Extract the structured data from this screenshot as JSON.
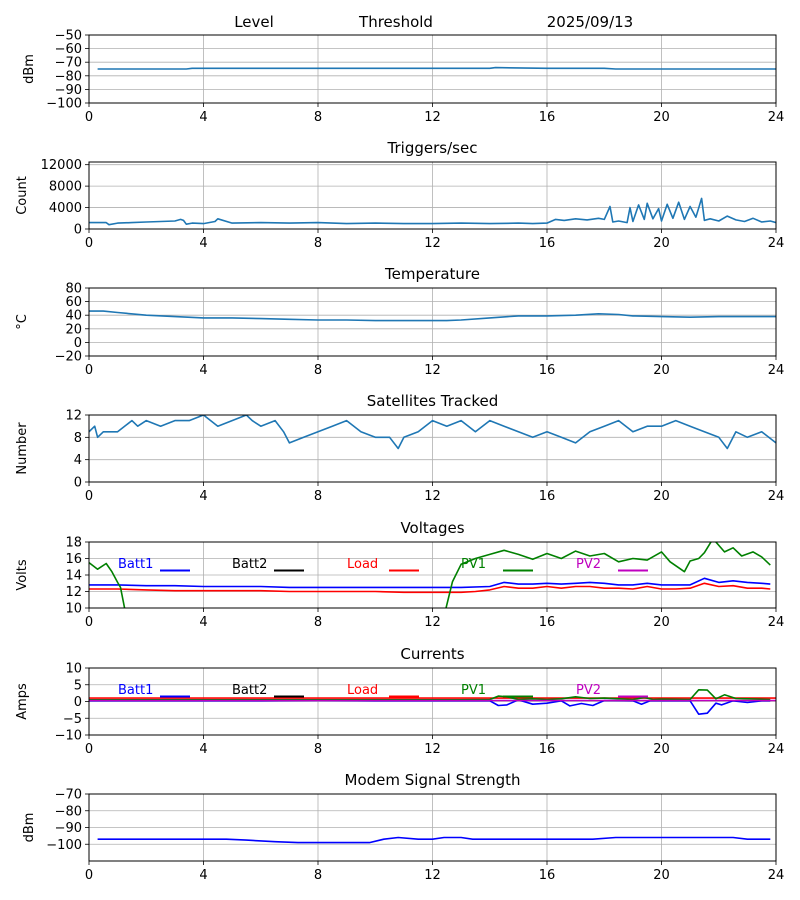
{
  "header": {
    "level_label": "Level",
    "threshold_label": "Threshold",
    "date": "2025/09/13"
  },
  "colors": {
    "primary_series": "#1f77b4",
    "grid": "#b0b0b0",
    "batt1": "#0000ff",
    "batt2": "#000000",
    "load": "#ff0000",
    "pv1": "#008000",
    "pv2": "#bf00bf"
  },
  "chart_data": [
    {
      "id": "level",
      "type": "line",
      "title": "",
      "xlabel": "",
      "ylabel": "dBm",
      "xlim": [
        0,
        24
      ],
      "ylim": [
        -100,
        -50
      ],
      "xticks": [
        0,
        4,
        8,
        12,
        16,
        20,
        24
      ],
      "yticks": [
        -100,
        -90,
        -80,
        -70,
        -60,
        -50
      ],
      "grid": true,
      "series": [
        {
          "color": "#1f77b4",
          "x": [
            0.3,
            2,
            3.4,
            3.6,
            6,
            8,
            10,
            12,
            14,
            14.2,
            16,
            18,
            18.4,
            20,
            21.6,
            24
          ],
          "y": [
            -75,
            -75,
            -75,
            -74.5,
            -74.5,
            -74.5,
            -74.5,
            -74.5,
            -74.5,
            -74,
            -74.5,
            -74.5,
            -75,
            -75,
            -75,
            -75
          ]
        }
      ]
    },
    {
      "id": "triggers",
      "type": "line",
      "title": "Triggers/sec",
      "xlabel": "",
      "ylabel": "Count",
      "xlim": [
        0,
        24
      ],
      "ylim": [
        0,
        12500
      ],
      "xticks": [
        0,
        4,
        8,
        12,
        16,
        20,
        24
      ],
      "yticks": [
        0,
        4000,
        8000,
        12000
      ],
      "grid": true,
      "series": [
        {
          "color": "#1f77b4",
          "x": [
            0,
            0.6,
            0.7,
            1,
            1.5,
            2,
            2.5,
            3,
            3.2,
            3.3,
            3.4,
            3.6,
            4,
            4.4,
            4.5,
            5,
            6,
            7,
            8,
            9,
            10,
            11,
            12,
            13,
            14,
            15,
            15.5,
            16,
            16.3,
            16.6,
            17,
            17.4,
            17.8,
            18,
            18.2,
            18.3,
            18.5,
            18.8,
            18.9,
            19,
            19.2,
            19.4,
            19.5,
            19.7,
            19.9,
            20,
            20.2,
            20.4,
            20.6,
            20.8,
            21,
            21.2,
            21.4,
            21.5,
            21.7,
            22,
            22.3,
            22.6,
            22.9,
            23.2,
            23.5,
            23.8,
            24
          ],
          "y": [
            1200,
            1200,
            800,
            1100,
            1200,
            1300,
            1400,
            1500,
            1800,
            1600,
            900,
            1100,
            1000,
            1400,
            1900,
            1100,
            1200,
            1100,
            1200,
            1000,
            1100,
            1000,
            1000,
            1100,
            1000,
            1100,
            1000,
            1100,
            1800,
            1600,
            1900,
            1700,
            2000,
            1800,
            4200,
            1300,
            1500,
            1200,
            4000,
            1400,
            4500,
            1800,
            4800,
            1900,
            3800,
            1500,
            4600,
            2000,
            5000,
            1800,
            4200,
            2200,
            5700,
            1600,
            1900,
            1500,
            2400,
            1700,
            1400,
            2000,
            1300,
            1500,
            1200
          ]
        }
      ]
    },
    {
      "id": "temperature",
      "type": "line",
      "title": "Temperature",
      "xlabel": "",
      "ylabel": "°C",
      "xlim": [
        0,
        24
      ],
      "ylim": [
        -20,
        80
      ],
      "xticks": [
        0,
        4,
        8,
        12,
        16,
        20,
        24
      ],
      "yticks": [
        -20,
        0,
        20,
        40,
        60,
        80
      ],
      "grid": true,
      "series": [
        {
          "color": "#1f77b4",
          "x": [
            0,
            0.5,
            1,
            2,
            3,
            4,
            5,
            6,
            7,
            8,
            9,
            10,
            11,
            12,
            12.5,
            13,
            14,
            15,
            16,
            17,
            17.8,
            18.5,
            19,
            20,
            21,
            22,
            23,
            24
          ],
          "y": [
            46,
            46,
            44,
            40,
            38,
            36,
            36,
            35,
            34,
            33,
            33,
            32,
            32,
            32,
            32,
            33,
            36,
            39,
            39,
            40,
            42,
            41,
            39,
            38,
            37,
            38,
            38,
            38
          ]
        }
      ]
    },
    {
      "id": "satellites",
      "type": "line",
      "title": "Satellites Tracked",
      "xlabel": "",
      "ylabel": "Number",
      "xlim": [
        0,
        24
      ],
      "ylim": [
        0,
        12
      ],
      "xticks": [
        0,
        4,
        8,
        12,
        16,
        20,
        24
      ],
      "yticks": [
        0,
        4,
        8,
        12
      ],
      "grid": true,
      "series": [
        {
          "color": "#1f77b4",
          "x": [
            0,
            0.2,
            0.3,
            0.5,
            1,
            1.5,
            1.7,
            2,
            2.5,
            3,
            3.5,
            4,
            4.5,
            5,
            5.5,
            5.7,
            6,
            6.5,
            6.8,
            7,
            7.5,
            8,
            8.5,
            9,
            9.5,
            10,
            10.5,
            10.8,
            11,
            11.5,
            12,
            12.5,
            13,
            13.5,
            14,
            14.5,
            15,
            15.5,
            16,
            16.5,
            17,
            17.5,
            18,
            18.5,
            19,
            19.5,
            20,
            20.5,
            21,
            21.5,
            22,
            22.3,
            22.6,
            23,
            23.5,
            24
          ],
          "y": [
            9,
            10,
            8,
            9,
            9,
            11,
            10,
            11,
            10,
            11,
            11,
            12,
            10,
            11,
            12,
            11,
            10,
            11,
            9,
            7,
            8,
            9,
            10,
            11,
            9,
            8,
            8,
            6,
            8,
            9,
            11,
            10,
            11,
            9,
            11,
            10,
            9,
            8,
            9,
            8,
            7,
            9,
            10,
            11,
            9,
            10,
            10,
            11,
            10,
            9,
            8,
            6,
            9,
            8,
            9,
            7
          ]
        }
      ]
    },
    {
      "id": "voltages",
      "type": "line",
      "title": "Voltages",
      "xlabel": "",
      "ylabel": "Volts",
      "xlim": [
        0,
        24
      ],
      "ylim": [
        10,
        18
      ],
      "xticks": [
        0,
        4,
        8,
        12,
        16,
        20,
        24
      ],
      "yticks": [
        10,
        12,
        14,
        16,
        18
      ],
      "grid": true,
      "series": [
        {
          "name": "Batt1",
          "color": "#0000ff",
          "x": [
            0,
            1,
            2,
            3,
            4,
            5,
            6,
            7,
            8,
            9,
            10,
            11,
            12,
            13,
            14,
            14.5,
            15,
            15.5,
            16,
            16.5,
            17,
            17.5,
            18,
            18.5,
            19,
            19.5,
            20,
            20.5,
            21,
            21.5,
            22,
            22.5,
            23,
            23.5,
            23.8
          ],
          "y": [
            12.8,
            12.8,
            12.7,
            12.7,
            12.6,
            12.6,
            12.6,
            12.5,
            12.5,
            12.5,
            12.5,
            12.5,
            12.5,
            12.5,
            12.6,
            13.1,
            12.9,
            12.9,
            13.0,
            12.9,
            13.0,
            13.1,
            13.0,
            12.8,
            12.8,
            13.0,
            12.8,
            12.8,
            12.8,
            13.6,
            13.1,
            13.3,
            13.1,
            13.0,
            12.9
          ]
        },
        {
          "name": "Batt2",
          "color": "#000000",
          "x": [],
          "y": []
        },
        {
          "name": "Load",
          "color": "#ff0000",
          "x": [
            0,
            1,
            2,
            3,
            4,
            5,
            6,
            7,
            8,
            9,
            10,
            11,
            12,
            13,
            13.5,
            14,
            14.5,
            15,
            15.5,
            16,
            16.5,
            17,
            17.5,
            18,
            18.5,
            19,
            19.5,
            20,
            20.5,
            21,
            21.5,
            22,
            22.5,
            23,
            23.5,
            23.8
          ],
          "y": [
            12.3,
            12.3,
            12.2,
            12.1,
            12.1,
            12.1,
            12.1,
            12.0,
            12.0,
            12.0,
            12.0,
            11.9,
            11.9,
            11.9,
            12.0,
            12.2,
            12.6,
            12.4,
            12.4,
            12.6,
            12.4,
            12.6,
            12.6,
            12.4,
            12.4,
            12.3,
            12.6,
            12.3,
            12.3,
            12.4,
            13.0,
            12.6,
            12.7,
            12.4,
            12.4,
            12.3
          ]
        },
        {
          "name": "PV1",
          "color": "#008000",
          "x": [
            0,
            0.3,
            0.6,
            0.8,
            1,
            1.1,
            1.3,
            12.4,
            12.7,
            13,
            13.5,
            14,
            14.5,
            15,
            15.5,
            16,
            16.5,
            17,
            17.5,
            18,
            18.5,
            19,
            19.5,
            20,
            20.3,
            20.8,
            21,
            21.3,
            21.5,
            21.8,
            22.2,
            22.5,
            22.8,
            23.2,
            23.5,
            23.8
          ],
          "y": [
            15.5,
            14.7,
            15.4,
            14.4,
            13.1,
            12.5,
            9.0,
            9.0,
            13.2,
            15.3,
            16.0,
            16.5,
            17.0,
            16.5,
            15.9,
            16.6,
            16.0,
            16.9,
            16.3,
            16.6,
            15.6,
            16.0,
            15.8,
            16.8,
            15.6,
            14.4,
            15.7,
            16.0,
            16.7,
            18.4,
            16.8,
            17.3,
            16.3,
            16.8,
            16.2,
            15.2
          ]
        },
        {
          "name": "PV2",
          "color": "#bf00bf",
          "x": [],
          "y": []
        }
      ]
    },
    {
      "id": "currents",
      "type": "line",
      "title": "Currents",
      "xlabel": "",
      "ylabel": "Amps",
      "xlim": [
        0,
        24
      ],
      "ylim": [
        -10,
        10
      ],
      "xticks": [
        0,
        4,
        8,
        12,
        16,
        20,
        24
      ],
      "yticks": [
        -10,
        -5,
        0,
        5,
        10
      ],
      "grid": true,
      "series": [
        {
          "name": "Batt1",
          "color": "#0000ff",
          "x": [
            0,
            2,
            4,
            6,
            8,
            10,
            12,
            13,
            14,
            14.3,
            14.6,
            15,
            15.5,
            16,
            16.5,
            16.8,
            17.2,
            17.6,
            18,
            19,
            19.3,
            19.6,
            20,
            21,
            21.3,
            21.6,
            21.9,
            22.1,
            22.5,
            23,
            23.5,
            23.8
          ],
          "y": [
            0.2,
            0.2,
            0.2,
            0.2,
            0.3,
            0.2,
            0.2,
            0.2,
            0.2,
            -1.2,
            -1.0,
            0.5,
            -0.8,
            -0.5,
            0.2,
            -1.3,
            -0.6,
            -1.2,
            0.3,
            0.2,
            -0.8,
            0.2,
            0.2,
            0.2,
            -3.8,
            -3.5,
            -0.5,
            -1.0,
            0.2,
            -0.3,
            0.2,
            0.2
          ]
        },
        {
          "name": "Batt2",
          "color": "#000000",
          "x": [],
          "y": []
        },
        {
          "name": "Load",
          "color": "#ff0000",
          "x": [
            0,
            2,
            4,
            6,
            8,
            10,
            12,
            14,
            16,
            18,
            20,
            22,
            24
          ],
          "y": [
            1.0,
            1.0,
            1.0,
            1.0,
            1.0,
            1.0,
            1.0,
            1.0,
            1.0,
            1.0,
            1.0,
            1.0,
            1.0
          ]
        },
        {
          "name": "PV1",
          "color": "#008000",
          "x": [
            0,
            2,
            4,
            6,
            8,
            10,
            12,
            13,
            14,
            14.3,
            14.6,
            15,
            15.5,
            16,
            16.5,
            17,
            17.5,
            18,
            19,
            19.4,
            19.7,
            20,
            21,
            21.3,
            21.6,
            21.9,
            22.2,
            22.6,
            23,
            23.8
          ],
          "y": [
            0.5,
            0.5,
            0.5,
            0.5,
            0.5,
            0.5,
            0.5,
            0.5,
            0.6,
            1.6,
            1.4,
            0.6,
            0.8,
            0.6,
            0.8,
            1.4,
            0.9,
            1.0,
            0.6,
            1.2,
            0.6,
            0.7,
            0.6,
            3.5,
            3.4,
            0.8,
            2.0,
            0.9,
            0.8,
            0.6
          ]
        },
        {
          "name": "PV2",
          "color": "#bf00bf",
          "x": [
            0,
            2,
            4,
            6,
            8,
            10,
            12,
            14,
            16,
            18,
            20,
            22,
            24
          ],
          "y": [
            0.3,
            0.3,
            0.3,
            0.3,
            0.3,
            0.3,
            0.3,
            0.3,
            0.3,
            0.3,
            0.3,
            0.3,
            0.3
          ]
        }
      ]
    },
    {
      "id": "modem",
      "type": "line",
      "title": "Modem Signal Strength",
      "xlabel": "",
      "ylabel": "dBm",
      "xlim": [
        0,
        24
      ],
      "ylim": [
        -110,
        -70
      ],
      "xticks": [
        0,
        4,
        8,
        12,
        16,
        20,
        24
      ],
      "yticks": [
        -100,
        -90,
        -80,
        -70
      ],
      "grid": true,
      "series": [
        {
          "color": "#0000ff",
          "x": [
            0.3,
            1,
            2,
            3,
            4,
            4.8,
            5.5,
            6.5,
            7.3,
            8,
            9,
            9.8,
            10.3,
            10.8,
            11.5,
            12,
            12.4,
            13,
            13.4,
            14,
            15,
            16,
            17,
            17.6,
            18.4,
            19,
            20,
            21,
            22,
            22.5,
            23,
            23.8
          ],
          "y": [
            -97,
            -97,
            -97,
            -97,
            -97,
            -97,
            -97.5,
            -98.5,
            -99,
            -99,
            -99,
            -99,
            -97,
            -96,
            -97,
            -97,
            -96,
            -96,
            -97,
            -97,
            -97,
            -97,
            -97,
            -97,
            -96,
            -96,
            -96,
            -96,
            -96,
            -96,
            -97,
            -97
          ]
        }
      ]
    }
  ]
}
